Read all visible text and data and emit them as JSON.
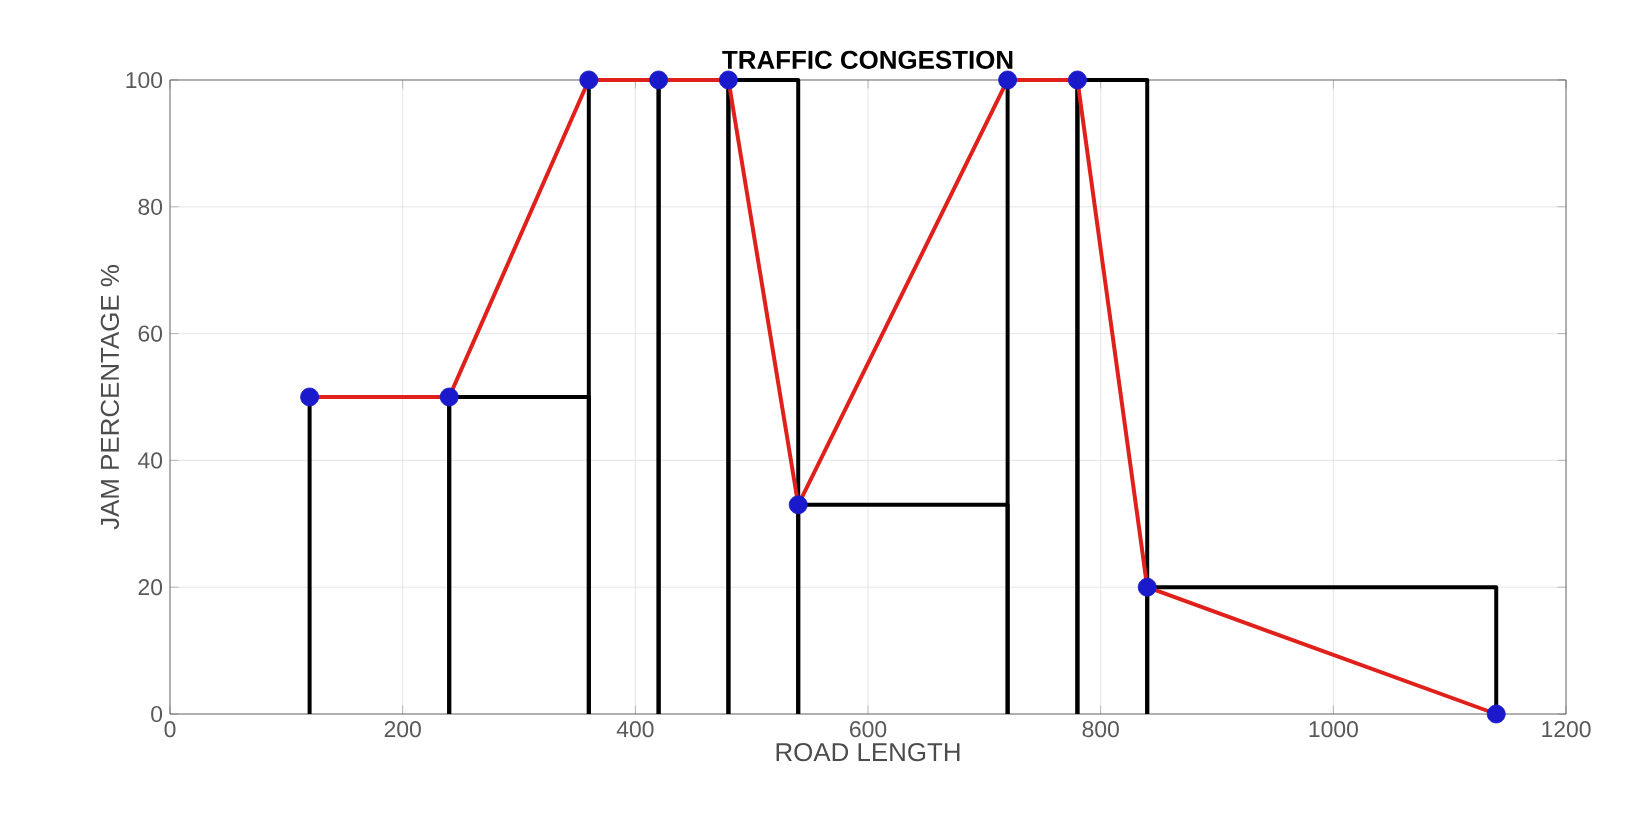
{
  "chart_data": {
    "type": "line",
    "title": "TRAFFIC CONGESTION",
    "xlabel": "ROAD LENGTH",
    "ylabel": "JAM PERCENTAGE %",
    "series": [
      {
        "type": "histogram",
        "color": "#000000",
        "bins": [
          120,
          240,
          360,
          420,
          480,
          540,
          720,
          780,
          840,
          1140
        ],
        "values": [
          50,
          50,
          100,
          100,
          100,
          33,
          100,
          100,
          20
        ]
      },
      {
        "color": "#e0201b",
        "colors": [
          "#1a1acc",
          "#1a1acc",
          "#1a1acc",
          "#1a1acc",
          "#1a1acc",
          "#1a1acc",
          "#1a1acc",
          "#1a1acc",
          "#1a1acc",
          "#1a1acc"
        ],
        "marker": "circle",
        "x": [
          120,
          240,
          360,
          420,
          480,
          540,
          720,
          780,
          840,
          1140
        ],
        "values": [
          50,
          50,
          100,
          100,
          100,
          33,
          100,
          100,
          20,
          0
        ]
      }
    ],
    "xlim": [
      0,
      1200
    ],
    "ylim": [
      0,
      100
    ],
    "xticks": [
      0,
      200,
      400,
      600,
      800,
      1000,
      1200
    ],
    "yticks": [
      0,
      20,
      40,
      60,
      80,
      100
    ],
    "grid": true
  }
}
